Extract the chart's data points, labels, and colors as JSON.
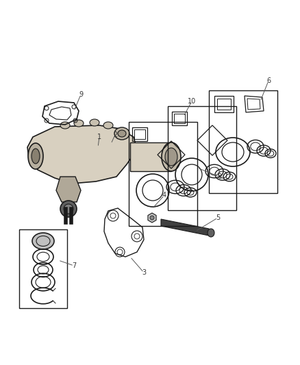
{
  "bg_color": "#ffffff",
  "lc": "#1a1a1a",
  "fig_width": 4.38,
  "fig_height": 5.33,
  "dpi": 100,
  "gear_color": "#888888",
  "gear_fill": "#d8d0c0",
  "dark_fill": "#404040",
  "label_color": "#555555"
}
